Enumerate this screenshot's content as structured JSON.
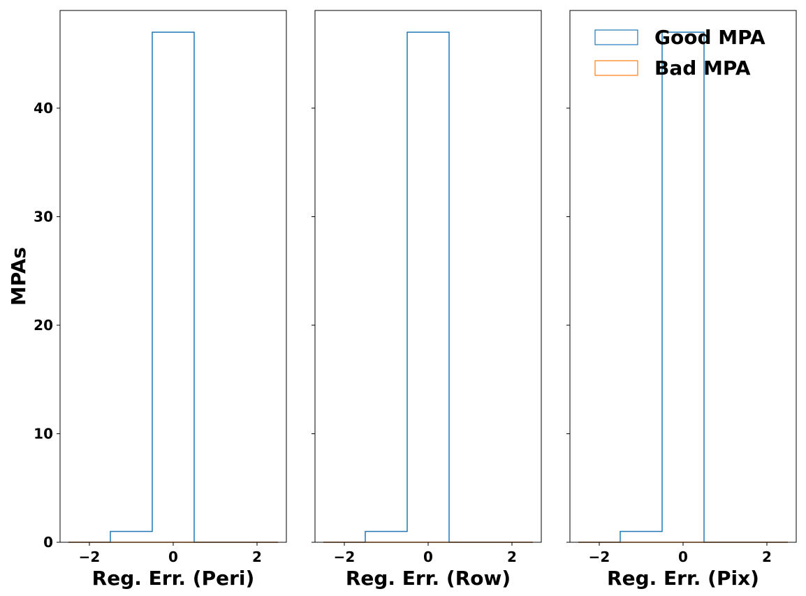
{
  "chart_data": {
    "type": "histogram",
    "ylabel": "MPAs",
    "ylim": [
      0,
      49
    ],
    "yticks": [
      0,
      10,
      20,
      30,
      40
    ],
    "xlim": [
      -2.7,
      2.7
    ],
    "xticks": [
      -2,
      0,
      2
    ],
    "xtick_labels": [
      "−2",
      "0",
      "2"
    ],
    "bin_edges": [
      -2.5,
      -1.5,
      -0.5,
      0.5,
      1.5,
      2.5
    ],
    "legend": {
      "placement": "top-right",
      "entries": [
        {
          "name": "Good MPA",
          "color": "#1f77b4"
        },
        {
          "name": "Bad MPA",
          "color": "#ff7f0e"
        }
      ]
    },
    "panels": [
      {
        "xlabel": "Reg. Err. (Peri)",
        "series": [
          {
            "name": "Good MPA",
            "color": "#1f77b4",
            "counts": [
              0,
              1,
              47,
              0,
              0
            ]
          },
          {
            "name": "Bad MPA",
            "color": "#ff7f0e",
            "counts": [
              0,
              0,
              0,
              0,
              0
            ]
          }
        ]
      },
      {
        "xlabel": "Reg. Err. (Row)",
        "series": [
          {
            "name": "Good MPA",
            "color": "#1f77b4",
            "counts": [
              0,
              1,
              47,
              0,
              0
            ]
          },
          {
            "name": "Bad MPA",
            "color": "#ff7f0e",
            "counts": [
              0,
              0,
              0,
              0,
              0
            ]
          }
        ]
      },
      {
        "xlabel": "Reg. Err. (Pix)",
        "series": [
          {
            "name": "Good MPA",
            "color": "#1f77b4",
            "counts": [
              0,
              1,
              47,
              0,
              0
            ]
          },
          {
            "name": "Bad MPA",
            "color": "#ff7f0e",
            "counts": [
              0,
              0,
              0,
              0,
              0
            ]
          }
        ]
      }
    ]
  }
}
